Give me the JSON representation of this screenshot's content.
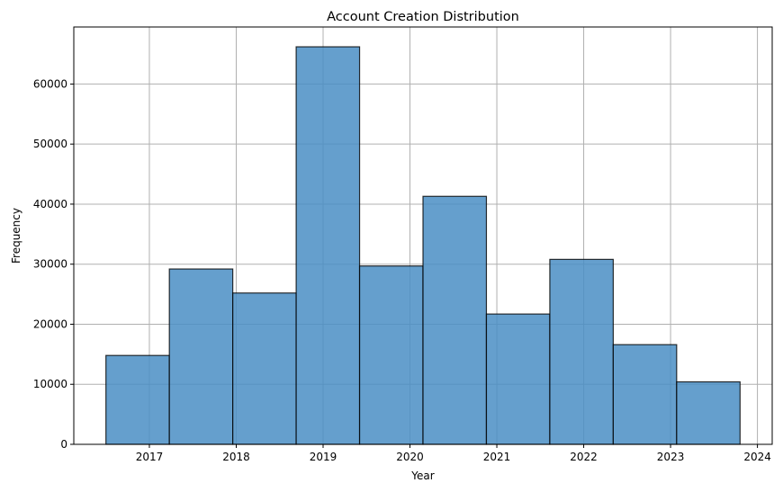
{
  "chart_data": {
    "type": "bar",
    "title": "Account Creation Distribution",
    "xlabel": "Year",
    "ylabel": "Frequency",
    "bins": [
      {
        "start": 2016.5,
        "end": 2017.23,
        "value": 14800
      },
      {
        "start": 2017.23,
        "end": 2017.96,
        "value": 29200
      },
      {
        "start": 2017.96,
        "end": 2018.69,
        "value": 25200
      },
      {
        "start": 2018.69,
        "end": 2019.42,
        "value": 66200
      },
      {
        "start": 2019.42,
        "end": 2020.15,
        "value": 29700
      },
      {
        "start": 2020.15,
        "end": 2020.88,
        "value": 41300
      },
      {
        "start": 2020.88,
        "end": 2021.61,
        "value": 21700
      },
      {
        "start": 2021.61,
        "end": 2022.34,
        "value": 30800
      },
      {
        "start": 2022.34,
        "end": 2023.07,
        "value": 16600
      },
      {
        "start": 2023.07,
        "end": 2023.8,
        "value": 10400
      }
    ],
    "xlim": [
      2016.13,
      2024.17
    ],
    "ylim": [
      0,
      69500
    ],
    "xticks": [
      "2017",
      "2018",
      "2019",
      "2020",
      "2021",
      "2022",
      "2023",
      "2024"
    ],
    "yticks": [
      "0",
      "10000",
      "20000",
      "30000",
      "40000",
      "50000",
      "60000"
    ],
    "bar_color": "#4a8ec4",
    "bar_edge_color": "#000000",
    "grid": true
  }
}
